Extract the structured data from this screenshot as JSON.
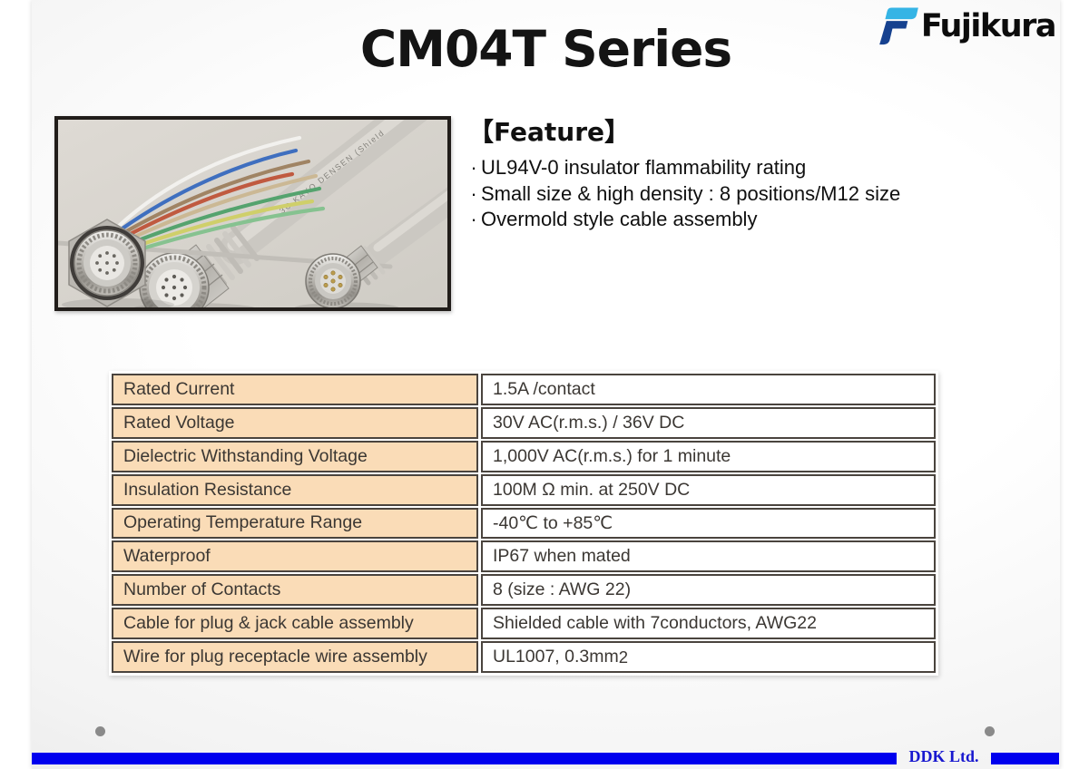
{
  "slide": {
    "title": "CM04T Series",
    "brand": "Fujikura",
    "feature": {
      "heading": "【Feature】",
      "bullet": "·",
      "items": [
        "UL94V-0 insulator flammability rating",
        "Small size & high density : 8 positions/M12 size",
        "Overmold style cable assembly"
      ]
    },
    "photo": {
      "cable_print": "3C KAYO DENSEN (Shield"
    },
    "table": {
      "rows": [
        {
          "label": "Rated Current",
          "value": "1.5A /contact"
        },
        {
          "label": "Rated Voltage",
          "value": "30V AC(r.m.s.) / 36V DC"
        },
        {
          "label": "Dielectric Withstanding Voltage",
          "value": "1,000V AC(r.m.s.) for 1 minute"
        },
        {
          "label": "Insulation Resistance",
          "value": "100M Ω min. at 250V DC"
        },
        {
          "label": "Operating Temperature Range",
          "value": "-40℃ to +85℃"
        },
        {
          "label": "Waterproof",
          "value": "IP67 when mated"
        },
        {
          "label": "Number of Contacts",
          "value": "8 (size : AWG 22)"
        },
        {
          "label": "Cable for plug & jack cable assembly",
          "value": "Shielded cable with 7conductors, AWG22"
        },
        {
          "label": "Wire for plug receptacle wire assembly",
          "value": "UL1007, 0.3mm",
          "sup": "2"
        }
      ]
    },
    "footer": {
      "brand": "DDK Ltd."
    },
    "colors": {
      "accent_blue": "#0000ee",
      "table_label_bg": "#fadcb7",
      "logo_light_blue": "#35b4e5",
      "logo_dark_blue": "#16418f"
    }
  }
}
